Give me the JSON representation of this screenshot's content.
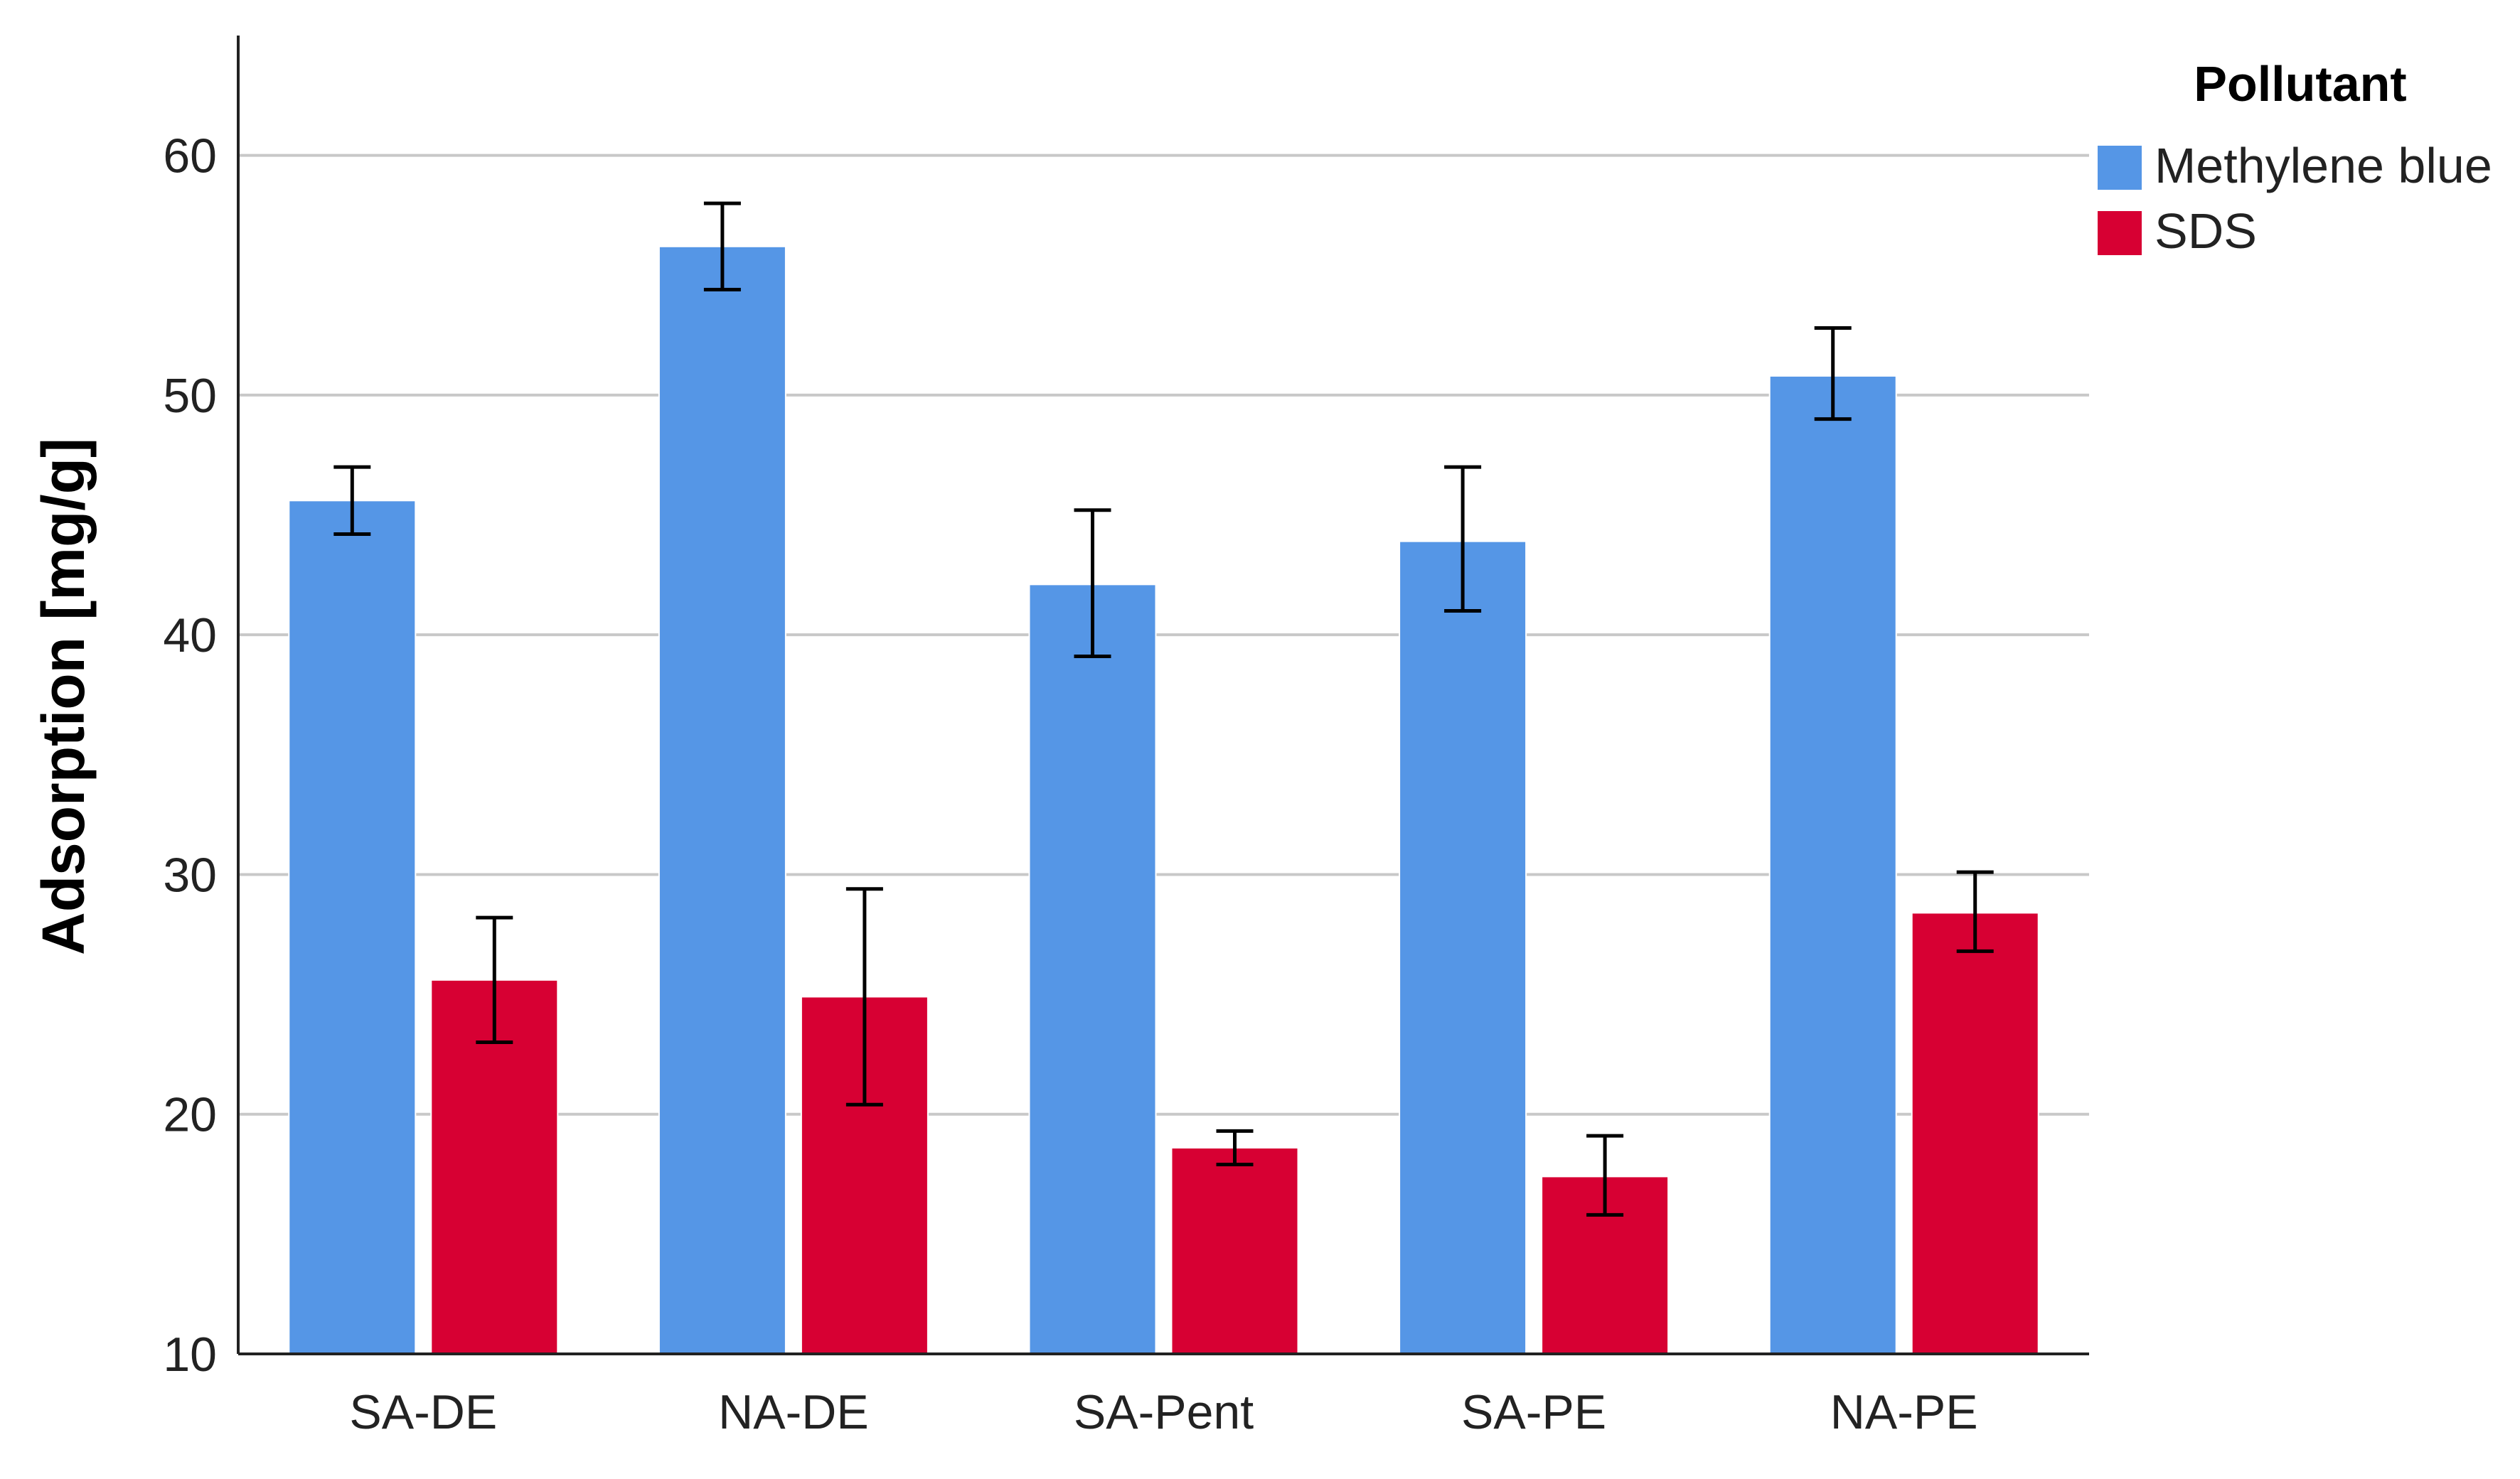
{
  "chart_data": {
    "type": "bar",
    "title": "",
    "xlabel": "",
    "ylabel": "Adsorption [mg/g]",
    "ylim": [
      10,
      65
    ],
    "yticks": [
      10,
      20,
      30,
      40,
      50,
      60
    ],
    "grid": true,
    "legend": {
      "title": "Pollutant",
      "placement": "top-right, outside plot"
    },
    "categories": [
      "SA-DE",
      "NA-DE",
      "SA-Pent",
      "SA-PE",
      "NA-PE"
    ],
    "series": [
      {
        "name": "Methylene blue",
        "color": "#5596E6",
        "values": [
          45.6,
          56.2,
          42.1,
          43.9,
          50.8
        ],
        "error_low": [
          44.2,
          54.4,
          39.1,
          41.0,
          49.0
        ],
        "error_high": [
          47.0,
          58.0,
          45.2,
          47.0,
          52.8
        ]
      },
      {
        "name": "SDS",
        "color": "#D70033",
        "values": [
          25.6,
          24.9,
          18.6,
          17.4,
          28.4
        ],
        "error_low": [
          23.0,
          20.4,
          17.9,
          15.8,
          26.8
        ],
        "error_high": [
          28.2,
          29.4,
          19.3,
          19.1,
          30.1
        ]
      }
    ]
  }
}
